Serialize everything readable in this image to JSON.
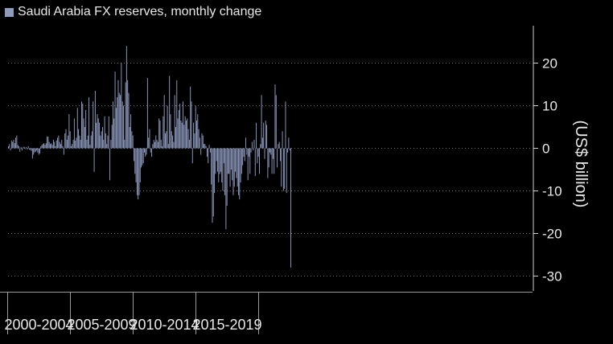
{
  "chart_data": {
    "type": "bar",
    "title": "Saudi Arabia FX reserves, monthly change",
    "ylabel": "(US$ billion)",
    "ylim": [
      -32,
      29
    ],
    "yticks": [
      20,
      10,
      0,
      -10,
      -20,
      -30
    ],
    "grid": true,
    "legend": {
      "position": "top-left",
      "label": "Saudi Arabia FX reserves, monthly change"
    },
    "x_start": "2000-01",
    "x_end": "2020-04",
    "periods": [
      "2000-2004",
      "2005-2009",
      "2010-2014",
      "2015-2019"
    ],
    "series": [
      {
        "name": "Saudi Arabia FX reserves, monthly change",
        "color": "#8e9bbf",
        "values": [
          0.5,
          1.0,
          -0.5,
          1.8,
          1.5,
          2.0,
          1.2,
          2.5,
          3.0,
          0.8,
          0.5,
          -0.8,
          0.3,
          -0.5,
          0.2,
          0.4,
          -0.2,
          0.3,
          -0.3,
          0.5,
          -0.3,
          -0.4,
          -0.6,
          -2.4,
          -1.5,
          -1.0,
          -0.8,
          -0.5,
          -1.0,
          -1.5,
          -1.2,
          0.5,
          0.8,
          1.0,
          1.2,
          0.8,
          1.2,
          2.8,
          2.7,
          1.5,
          1.0,
          1.2,
          0.8,
          2.0,
          1.5,
          0.5,
          1.8,
          2.5,
          3.0,
          1.5,
          1.0,
          2.0,
          0.5,
          -1.5,
          3.5,
          4.5,
          2.0,
          3.0,
          8.0,
          4.0,
          0.5,
          1.0,
          2.0,
          7.0,
          1.8,
          2.5,
          9.5,
          4.5,
          3.0,
          2.0,
          11.0,
          10.5,
          7.0,
          5.0,
          9.0,
          2.0,
          3.0,
          12.0,
          0.8,
          3.0,
          4.0,
          11.0,
          -5.5,
          13.5,
          6.0,
          8.0,
          7.0,
          6.0,
          3.0,
          4.0,
          5.0,
          2.0,
          7.5,
          3.5,
          1.0,
          3.0,
          7.5,
          -7.5,
          2.0,
          5.5,
          11.0,
          7.0,
          18.0,
          9.5,
          12.0,
          16.0,
          13.0,
          12.5,
          20.0,
          11.0,
          10.0,
          2.0,
          15.5,
          24.0,
          16.0,
          13.0,
          5.0,
          8.0,
          4.0,
          3.0,
          -3.0,
          -6.0,
          -8.0,
          -11.0,
          -12.0,
          -11.0,
          -8.0,
          -4.5,
          -4.0,
          -3.5,
          -1.0,
          -2.0,
          -1.5,
          16.5,
          2.5,
          4.5,
          -1.0,
          -2.0,
          1.0,
          2.0,
          1.5,
          3.0,
          2.0,
          1.5,
          7.0,
          6.5,
          2.0,
          0.5,
          7.5,
          12.5,
          3.5,
          4.0,
          10.0,
          1.0,
          17.0,
          8.0,
          4.0,
          3.0,
          1.5,
          12.5,
          5.0,
          16.0,
          7.0,
          9.0,
          10.5,
          6.5,
          6.0,
          11.0,
          5.5,
          7.5,
          6.5,
          7.0,
          4.5,
          2.0,
          14.5,
          11.0,
          -3.5,
          6.0,
          3.5,
          10.0,
          6.5,
          8.0,
          4.5,
          2.5,
          -1.5,
          3.5,
          3.0,
          1.0,
          1.0,
          0.5,
          -2.0,
          -3.5,
          0.8,
          -1.0,
          -8.5,
          -17.5,
          -16.0,
          -10.5,
          -6.0,
          -3.0,
          -5.5,
          -8.0,
          -6.0,
          -5.5,
          -8.0,
          -10.0,
          -3.5,
          -11.0,
          -19.0,
          -13.5,
          -6.0,
          -6.0,
          -9.0,
          -5.0,
          -7.5,
          -11.0,
          -9.0,
          -5.5,
          -7.0,
          -9.0,
          -11.0,
          -12.0,
          -8.0,
          -6.0,
          -4.0,
          -2.0,
          -3.0,
          2.5,
          -1.5,
          -7.5,
          -2.0,
          -6.0,
          -1.0,
          1.5,
          -0.5,
          2.0,
          -6.5,
          6.0,
          -3.5,
          -2.0,
          -6.0,
          1.0,
          12.5,
          2.5,
          6.0,
          -2.5,
          6.5,
          5.5,
          -7.0,
          -4.5,
          -1.0,
          -1.5,
          -6.0,
          -2.5,
          -6.0,
          15.0,
          12.5,
          -4.5,
          1.0,
          1.5,
          -3.0,
          -9.0,
          4.0,
          -10.0,
          -9.5,
          11.0,
          -10.5,
          -1.0,
          2.5,
          -0.5,
          -28.0
        ]
      }
    ]
  }
}
